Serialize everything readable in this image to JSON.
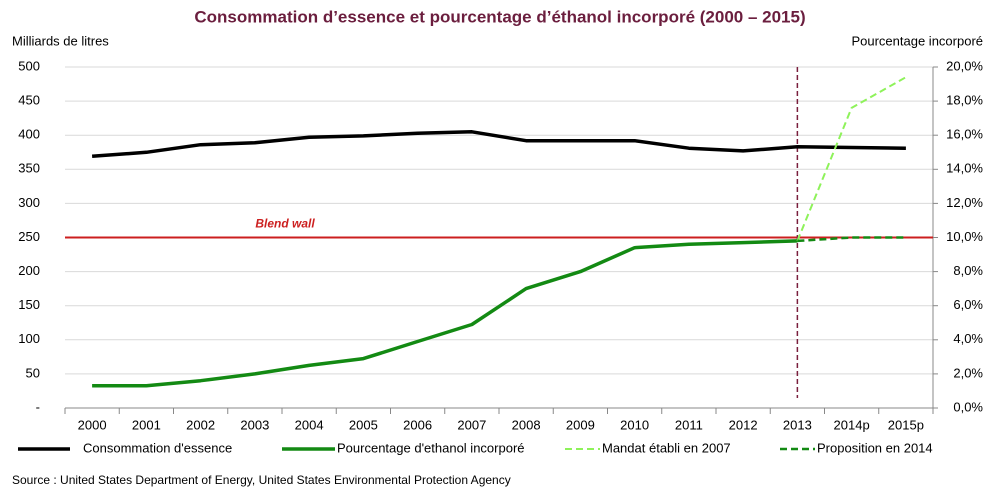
{
  "chart_data": {
    "type": "line",
    "title": "Consommation d’essence et pourcentage d’éthanol incorporé (2000 – 2015)",
    "y_label": "Milliards de litres",
    "y2_label": "Pourcentage incorporé",
    "source": "Source : United States Department of Energy, United States Environmental Protection Agency",
    "categories": [
      "2000",
      "2001",
      "2002",
      "2003",
      "2004",
      "2005",
      "2006",
      "2007",
      "2008",
      "2009",
      "2010",
      "2011",
      "2012",
      "2013",
      "2014p",
      "2015p"
    ],
    "series": [
      {
        "name": "Consommation d'essence",
        "color": "#000000",
        "style": "solid",
        "width": 3.5,
        "values": [
          369,
          375,
          386,
          389,
          397,
          399,
          403,
          405,
          392,
          392,
          392,
          381,
          377,
          383,
          382,
          381
        ]
      },
      {
        "name": "Pourcentage d'ethanol incorporé",
        "color": "#138a13",
        "style": "solid",
        "width": 3.5,
        "axis": "y2",
        "values": [
          1.3,
          1.3,
          1.6,
          2.0,
          2.5,
          2.9,
          3.9,
          4.9,
          7.0,
          8.0,
          9.4,
          9.6,
          9.7,
          9.8,
          null,
          null
        ]
      },
      {
        "name": "Mandat établi en 2007",
        "color": "#8ef25a",
        "style": "dashed",
        "width": 2,
        "axis": "y2",
        "values": [
          null,
          null,
          null,
          null,
          null,
          null,
          null,
          null,
          null,
          null,
          null,
          null,
          null,
          9.8,
          17.6,
          19.4
        ]
      },
      {
        "name": "Proposition en 2014",
        "color": "#138a13",
        "style": "dashed",
        "width": 2.5,
        "axis": "y2",
        "values": [
          null,
          null,
          null,
          null,
          null,
          null,
          null,
          null,
          null,
          null,
          null,
          null,
          null,
          9.8,
          10.0,
          10.0
        ]
      }
    ],
    "reference_line": {
      "label": "Blend wall",
      "value": 10,
      "axis": "y2",
      "color": "#cc1f1f"
    },
    "ylim": [
      0,
      500
    ],
    "yticks": [
      {
        "value": 0,
        "label": "-"
      },
      50,
      100,
      150,
      200,
      250,
      300,
      350,
      400,
      450,
      500
    ],
    "y2lim": [
      0,
      20
    ],
    "y2ticks": [
      {
        "value": 0,
        "label": "0,0%"
      },
      {
        "value": 2,
        "label": "2,0%"
      },
      {
        "value": 4,
        "label": "4,0%"
      },
      {
        "value": 6,
        "label": "6,0%"
      },
      {
        "value": 8,
        "label": "8,0%"
      },
      {
        "value": 10,
        "label": "10,0%"
      },
      {
        "value": 12,
        "label": "12,0%"
      },
      {
        "value": 14,
        "label": "14,0%"
      },
      {
        "value": 16,
        "label": "16,0%"
      },
      {
        "value": 18,
        "label": "18,0%"
      },
      {
        "value": 20,
        "label": "20,0%"
      }
    ],
    "grid": true,
    "legend": "bottom"
  }
}
